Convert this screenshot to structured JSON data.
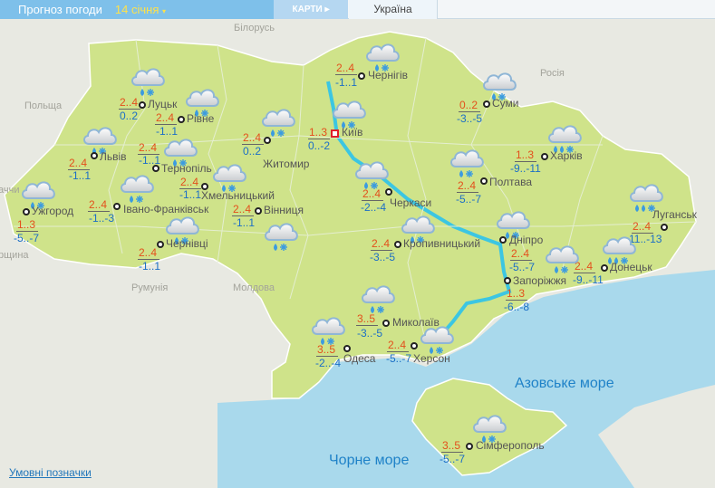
{
  "header": {
    "title": "Прогноз погоди",
    "date": "14 січня",
    "maps_label": "КАРТИ ▸",
    "region_tab": "Україна"
  },
  "countries": {
    "belarus": "Білорусь",
    "poland": "Польща",
    "russia": "Росія",
    "romania": "Румунія",
    "moldova": "Молдова",
    "slovakia_partial": "аччи",
    "hungary_partial": "рщина"
  },
  "seas": {
    "azov": "Азовське море",
    "black": "Чорне море"
  },
  "legend_link": "Умовні позначки",
  "colors": {
    "land": "#cfe38a",
    "sea": "#a9d9ec",
    "day_temp": "#e3501c",
    "night_temp": "#1c6fc6",
    "header": "#7ec0ea"
  },
  "cities": [
    {
      "name": "Луцьк",
      "day": "2..4",
      "night": "0..2",
      "icon": "cloud-rain-snow-icon"
    },
    {
      "name": "Рівне",
      "day": "2..4",
      "night": "-1..1",
      "icon": "cloud-rain-snow-icon"
    },
    {
      "name": "Житомир",
      "day": "2..4",
      "night": "0..2",
      "icon": "cloud-rain-snow-icon"
    },
    {
      "name": "Львів",
      "day": "2..4",
      "night": "-1..1",
      "icon": "cloud-rain-snow-icon"
    },
    {
      "name": "Тернопіль",
      "day": "2..4",
      "night": "-1..1",
      "icon": "cloud-rain-snow-icon"
    },
    {
      "name": "Хмельницький",
      "day": "2..4",
      "night": "-1..1",
      "icon": "cloud-rain-snow-icon"
    },
    {
      "name": "Ужгород",
      "day": "1..3",
      "night": "-5..-7",
      "icon": "cloud-rain-snow-icon"
    },
    {
      "name": "Івано-Франківськ",
      "day": "2..4",
      "night": "-1..-3",
      "icon": "cloud-rain-snow-icon"
    },
    {
      "name": "Вінниця",
      "day": "2..4",
      "night": "-1..1",
      "icon": "cloud-rain-snow-icon"
    },
    {
      "name": "Чернівці",
      "day": "2..4",
      "night": "-1..1",
      "icon": "cloud-rain-snow-icon"
    },
    {
      "name": "Чернігів",
      "day": "2..4",
      "night": "-1..1",
      "icon": "cloud-rain-snow-icon"
    },
    {
      "name": "Київ",
      "day": "1..3",
      "night": "0..-2",
      "icon": "cloud-rain-snow-icon"
    },
    {
      "name": "Суми",
      "day": "0..2",
      "night": "-3..-5",
      "icon": "cloud-rain-snow-icon"
    },
    {
      "name": "Харків",
      "day": "1..3",
      "night": "-9..-11",
      "icon": "cloud-heavy-rain-snow-icon"
    },
    {
      "name": "Черкаси",
      "day": "2..4",
      "night": "-2..-4",
      "icon": "cloud-rain-snow-icon"
    },
    {
      "name": "Полтава",
      "day": "2..4",
      "night": "-5..-7",
      "icon": "cloud-rain-snow-icon"
    },
    {
      "name": "Кропивницький",
      "day": "2..4",
      "night": "-3..-5",
      "icon": "cloud-rain-snow-icon"
    },
    {
      "name": "Дніпро",
      "day": "2..4",
      "night": "-5..-7",
      "icon": "cloud-rain-snow-icon"
    },
    {
      "name": "Луганськ",
      "day": "2..4",
      "night": "-11..-13",
      "icon": "cloud-heavy-rain-snow-icon"
    },
    {
      "name": "Донецьк",
      "day": "2..4",
      "night": "-9..-11",
      "icon": "cloud-heavy-rain-snow-icon"
    },
    {
      "name": "Запоріжжя",
      "day": "1..3",
      "night": "-6..-8",
      "icon": "cloud-rain-snow-icon"
    },
    {
      "name": "Миколаїв",
      "day": "3..5",
      "night": "-3..-5",
      "icon": "cloud-rain-snow-icon"
    },
    {
      "name": "Херсон",
      "day": "2..4",
      "night": "-5..-7",
      "icon": "cloud-rain-snow-icon"
    },
    {
      "name": "Одеса",
      "day": "3..5",
      "night": "-2..-4",
      "icon": "cloud-rain-snow-icon"
    },
    {
      "name": "Сімферополь",
      "day": "3..5",
      "night": "-5..-7",
      "icon": "cloud-rain-snow-icon"
    }
  ]
}
